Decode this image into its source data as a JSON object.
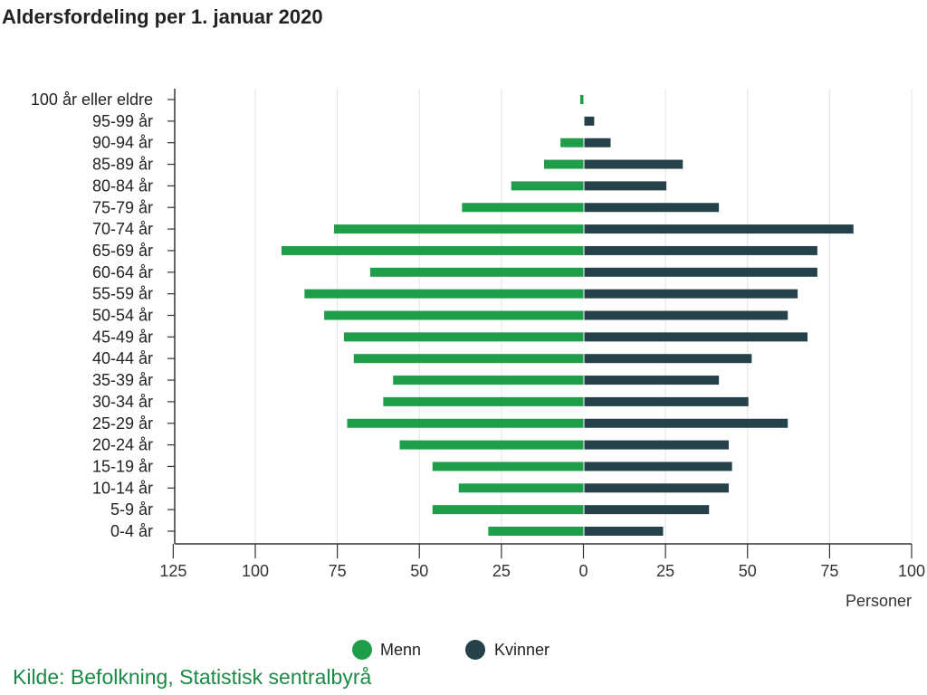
{
  "title": "Aldersfordeling per 1. januar 2020",
  "source": "Kilde: Befolkning, Statistisk sentralbyrå",
  "colors": {
    "menn": "#1f9e4a",
    "kvinner": "#25424a",
    "source": "#1a8a45"
  },
  "chart_data": {
    "type": "bar",
    "orientation": "horizontal-population-pyramid",
    "title": "Aldersfordeling per 1. januar 2020",
    "xlabel": "Personer",
    "categories": [
      "100 år eller eldre",
      "95-99 år",
      "90-94 år",
      "85-89 år",
      "80-84 år",
      "75-79 år",
      "70-74 år",
      "65-69 år",
      "60-64 år",
      "55-59 år",
      "50-54 år",
      "45-49 år",
      "40-44 år",
      "35-39 år",
      "30-34 år",
      "25-29 år",
      "20-24 år",
      "15-19 år",
      "10-14 år",
      "5-9 år",
      "0-4 år"
    ],
    "series": [
      {
        "name": "Menn",
        "values": [
          1,
          0,
          7,
          12,
          22,
          37,
          76,
          92,
          65,
          85,
          79,
          73,
          70,
          58,
          61,
          72,
          56,
          46,
          38,
          46,
          29
        ]
      },
      {
        "name": "Kvinner",
        "values": [
          0,
          3,
          8,
          30,
          25,
          41,
          82,
          71,
          71,
          65,
          62,
          68,
          51,
          41,
          50,
          62,
          44,
          45,
          44,
          38,
          24
        ]
      }
    ],
    "xlim": [
      -125,
      100
    ],
    "xticks": [
      -125,
      -100,
      -75,
      -50,
      -25,
      0,
      25,
      50,
      75,
      100
    ],
    "xtick_labels": [
      "125",
      "100",
      "75",
      "50",
      "25",
      "0",
      "25",
      "50",
      "75",
      "100"
    ],
    "legend": "bottom-center",
    "grid": true
  }
}
